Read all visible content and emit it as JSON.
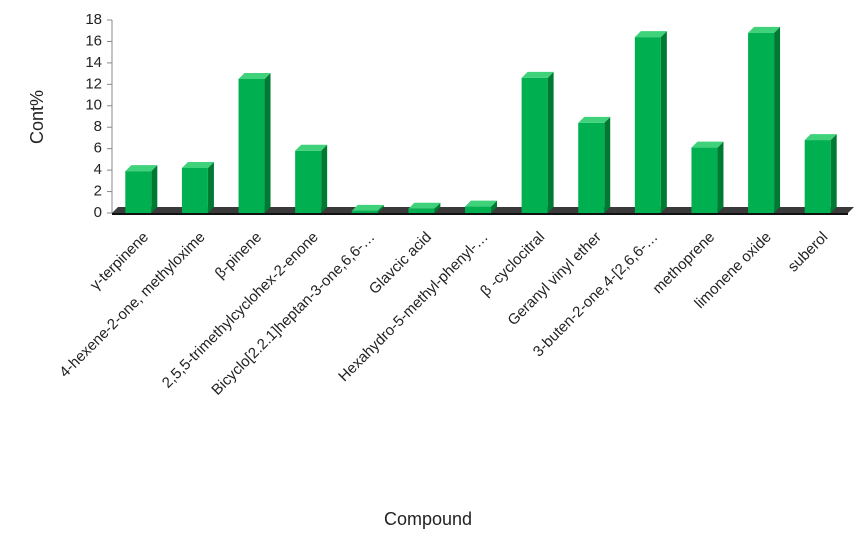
{
  "chart_data": {
    "type": "bar3d",
    "x_label": "Compound",
    "y_label": "Cont%",
    "categories": [
      "γ-terpinene",
      "4-hexene-2-one, methyloxime",
      "β-pinene",
      "2,5,5-trimethylcyclohex-2-enone",
      "Bicyclo[2.2.1]heptan-3-one,6,6-…",
      "Glavcic acid",
      "Hexahydro-5-methyl-phenyl-…",
      "β -cyclocitral",
      "Geranyl vinyl ether",
      "3-buten-2-one,4-[2,6,6-…",
      "methoprene",
      "limonene oxide",
      "suberol"
    ],
    "values": [
      3.9,
      4.2,
      12.5,
      5.8,
      0.2,
      0.4,
      0.6,
      12.6,
      8.4,
      16.4,
      6.1,
      16.8,
      6.8
    ],
    "color": "#00b050",
    "ylim": [
      0,
      18
    ],
    "yticks": [
      0,
      2,
      4,
      6,
      8,
      10,
      12,
      14,
      16,
      18
    ]
  }
}
